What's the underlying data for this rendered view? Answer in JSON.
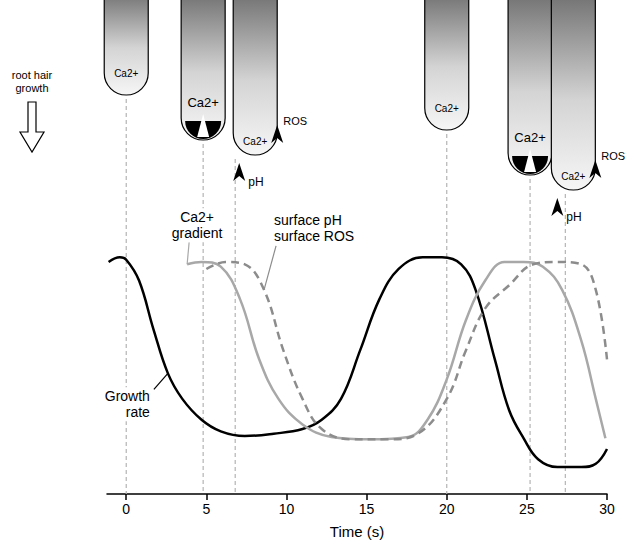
{
  "chart_data": {
    "type": "line",
    "xlabel": "Time (s)",
    "xlim": [
      -1.2,
      30
    ],
    "xticks": [
      0,
      5,
      10,
      15,
      20,
      25,
      30
    ],
    "ylim": [
      0,
      10
    ],
    "tick_labels": "x",
    "grid": false,
    "annotation": "root hair\ngrowth",
    "series": [
      {
        "name": "Growth\nrate",
        "color": "#000000",
        "line_style": "solid",
        "x": [
          -1.1,
          -0.4,
          0,
          0.8,
          1.7,
          2.6,
          3.5,
          4.7,
          5.9,
          7.4,
          9.2,
          11,
          12.2,
          13.4,
          14.6,
          15.8,
          17,
          18.5,
          19.7,
          20.9,
          21.8,
          23,
          23.9,
          24.8,
          25.7,
          26.9,
          28.4,
          29.3,
          30
        ],
        "values": [
          5.0,
          5.1,
          5.05,
          4.6,
          3.55,
          2.6,
          2.05,
          1.6,
          1.35,
          1.25,
          1.3,
          1.4,
          1.6,
          2.05,
          3.1,
          4.2,
          4.85,
          5.1,
          5.1,
          4.95,
          4.4,
          2.9,
          1.8,
          1.2,
          0.75,
          0.58,
          0.58,
          0.65,
          0.97
        ]
      },
      {
        "name": "Ca2+\ngradient",
        "color": "#a8a8a8",
        "line_style": "solid",
        "x": [
          3.8,
          4.7,
          5.9,
          7.1,
          8.3,
          9.5,
          11,
          12.8,
          15.2,
          17.6,
          18.8,
          20,
          21.2,
          22.4,
          23.6,
          24.8,
          26,
          27.2,
          28.4,
          29.3,
          29.9
        ],
        "values": [
          4.95,
          5.0,
          4.9,
          4.2,
          2.9,
          2.05,
          1.5,
          1.23,
          1.18,
          1.23,
          1.6,
          2.47,
          3.75,
          4.6,
          5.0,
          5.0,
          4.9,
          4.4,
          3.3,
          2.05,
          1.2
        ]
      },
      {
        "name": "surface pH\nsurface ROS",
        "color": "#8c8c8c",
        "line_style": "dashed",
        "x": [
          5,
          6.2,
          7.4,
          8.6,
          9.8,
          11,
          12.2,
          14,
          16.4,
          18.2,
          20,
          21.2,
          22.4,
          23.9,
          25.4,
          26.9,
          28.4,
          29.3,
          30
        ],
        "values": [
          4.85,
          5.0,
          4.95,
          4.4,
          3.1,
          2.05,
          1.4,
          1.18,
          1.18,
          1.3,
          2.05,
          3.1,
          4.0,
          4.5,
          4.95,
          5.0,
          4.95,
          4.4,
          2.9
        ]
      }
    ],
    "markers": [
      {
        "x": 0,
        "labels": [
          "Ca2+"
        ]
      },
      {
        "x": 4.8,
        "labels": [
          "Ca2+"
        ]
      },
      {
        "x": 6.8,
        "labels": [
          "Ca2+",
          "pH",
          "ROS"
        ]
      },
      {
        "x": 20,
        "labels": [
          "Ca2+"
        ]
      },
      {
        "x": 25.2,
        "labels": [
          "Ca2+"
        ]
      },
      {
        "x": 27.4,
        "labels": [
          "Ca2+",
          "pH",
          "ROS"
        ]
      }
    ]
  }
}
